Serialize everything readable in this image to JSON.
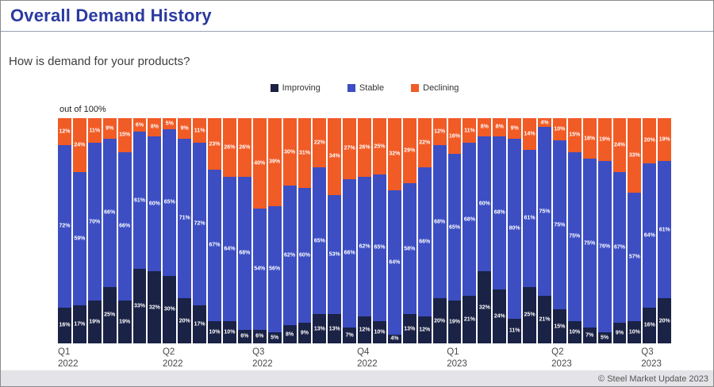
{
  "page": {
    "title": "Overall Demand History",
    "question": "How is demand for your products?",
    "axis_note": "out of 100%",
    "footer": "© Steel Market Update 2023"
  },
  "colors": {
    "title_blue": "#2b3aa0",
    "improving": "#1a2245",
    "stable": "#3c4ec2",
    "declining": "#f15b25",
    "footer_bg": "#e4e4e8"
  },
  "chart_data": {
    "type": "bar",
    "stacked": true,
    "unit": "percent",
    "title": "Overall Demand History",
    "question": "How is demand for your products?",
    "axis_note": "out of 100%",
    "legend_position": "top-center",
    "ylim": [
      0,
      100
    ],
    "grid": false,
    "series": [
      {
        "key": "improving",
        "name": "Improving",
        "color": "#1a2245"
      },
      {
        "key": "stable",
        "name": "Stable",
        "color": "#3c4ec2"
      },
      {
        "key": "declining",
        "name": "Declining",
        "color": "#f15b25"
      }
    ],
    "bars": [
      {
        "improving": 16,
        "stable": 72,
        "declining": 12
      },
      {
        "improving": 17,
        "stable": 59,
        "declining": 24
      },
      {
        "improving": 19,
        "stable": 70,
        "declining": 11
      },
      {
        "improving": 25,
        "stable": 66,
        "declining": 9
      },
      {
        "improving": 19,
        "stable": 66,
        "declining": 15
      },
      {
        "improving": 33,
        "stable": 61,
        "declining": 6
      },
      {
        "improving": 32,
        "stable": 60,
        "declining": 8
      },
      {
        "improving": 30,
        "stable": 65,
        "declining": 5
      },
      {
        "improving": 20,
        "stable": 71,
        "declining": 9
      },
      {
        "improving": 17,
        "stable": 72,
        "declining": 11
      },
      {
        "improving": 10,
        "stable": 67,
        "declining": 23
      },
      {
        "improving": 10,
        "stable": 64,
        "declining": 26
      },
      {
        "improving": 6,
        "stable": 68,
        "declining": 26
      },
      {
        "improving": 6,
        "stable": 54,
        "declining": 40
      },
      {
        "improving": 5,
        "stable": 56,
        "declining": 39
      },
      {
        "improving": 8,
        "stable": 62,
        "declining": 30
      },
      {
        "improving": 9,
        "stable": 60,
        "declining": 31
      },
      {
        "improving": 13,
        "stable": 65,
        "declining": 22
      },
      {
        "improving": 13,
        "stable": 53,
        "declining": 34
      },
      {
        "improving": 7,
        "stable": 66,
        "declining": 27
      },
      {
        "improving": 12,
        "stable": 62,
        "declining": 26
      },
      {
        "improving": 10,
        "stable": 65,
        "declining": 25
      },
      {
        "improving": 4,
        "stable": 64,
        "declining": 32
      },
      {
        "improving": 13,
        "stable": 58,
        "declining": 29
      },
      {
        "improving": 12,
        "stable": 66,
        "declining": 22
      },
      {
        "improving": 20,
        "stable": 68,
        "declining": 12
      },
      {
        "improving": 19,
        "stable": 65,
        "declining": 16
      },
      {
        "improving": 21,
        "stable": 68,
        "declining": 11
      },
      {
        "improving": 32,
        "stable": 60,
        "declining": 8
      },
      {
        "improving": 24,
        "stable": 68,
        "declining": 8
      },
      {
        "improving": 11,
        "stable": 80,
        "declining": 9
      },
      {
        "improving": 25,
        "stable": 61,
        "declining": 14
      },
      {
        "improving": 21,
        "stable": 75,
        "declining": 4
      },
      {
        "improving": 15,
        "stable": 75,
        "declining": 10
      },
      {
        "improving": 10,
        "stable": 75,
        "declining": 15
      },
      {
        "improving": 7,
        "stable": 75,
        "declining": 18
      },
      {
        "improving": 5,
        "stable": 76,
        "declining": 19
      },
      {
        "improving": 9,
        "stable": 67,
        "declining": 24
      },
      {
        "improving": 10,
        "stable": 57,
        "declining": 33
      },
      {
        "improving": 16,
        "stable": 64,
        "declining": 20
      },
      {
        "improving": 20,
        "stable": 61,
        "declining": 19
      }
    ],
    "quarters": [
      {
        "label": "Q1",
        "year": "2022",
        "bar_index": 0
      },
      {
        "label": "Q2",
        "year": "2022",
        "bar_index": 7
      },
      {
        "label": "Q3",
        "year": "2022",
        "bar_index": 13
      },
      {
        "label": "Q4",
        "year": "2022",
        "bar_index": 20
      },
      {
        "label": "Q1",
        "year": "2023",
        "bar_index": 26
      },
      {
        "label": "Q2",
        "year": "2023",
        "bar_index": 33
      },
      {
        "label": "Q3",
        "year": "2023",
        "bar_index": 39
      }
    ]
  }
}
